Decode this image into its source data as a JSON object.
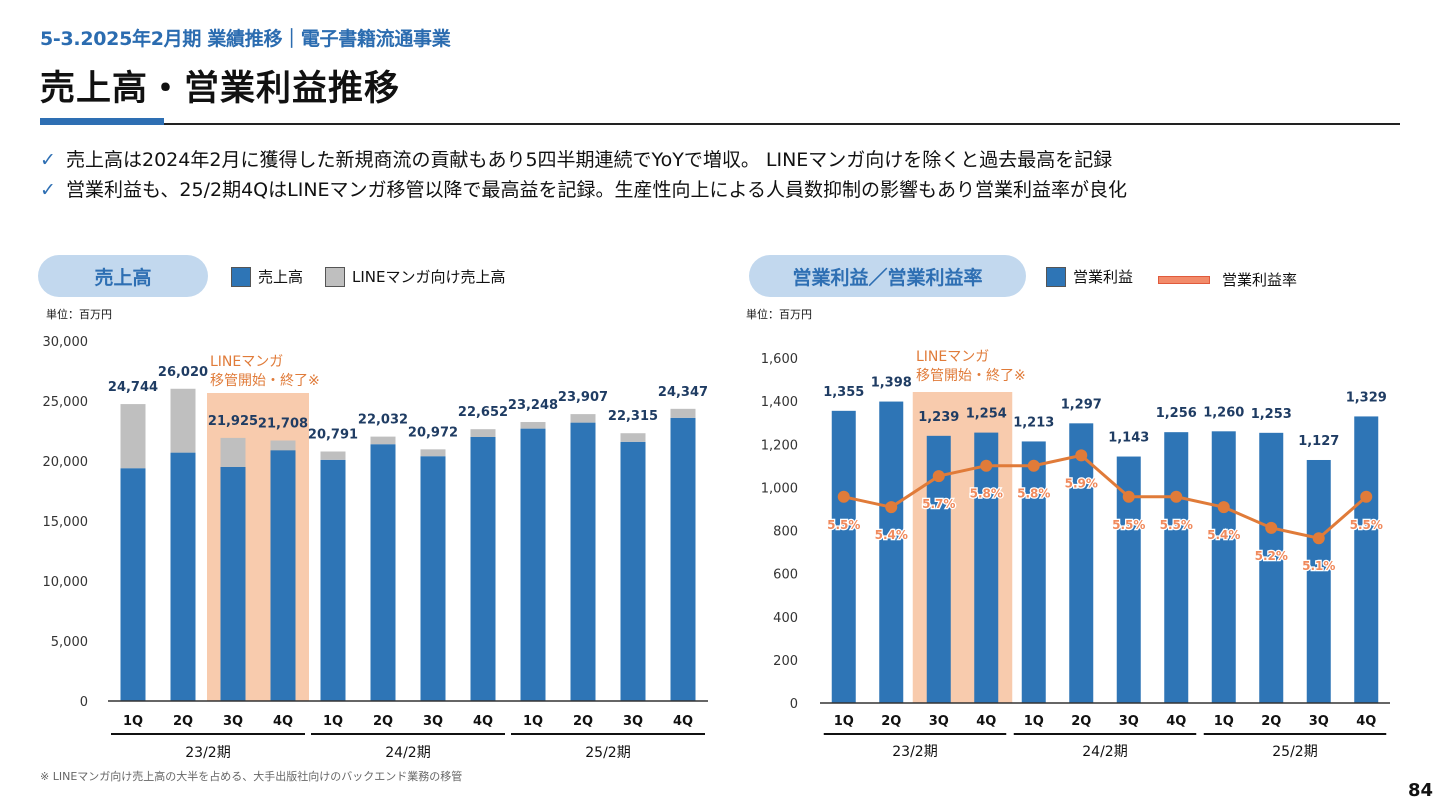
{
  "header": {
    "section_label": "5-3.2025年2月期 業績推移｜電子書籍流通事業",
    "title": "売上高・営業利益推移"
  },
  "bullets": [
    {
      "check": "✓",
      "text": "売上高は2024年2月に獲得した新規商流の貢献もあり5四半期連続でYoYで増収。 LINEマンガ向けを除くと過去最高を記録"
    },
    {
      "check": "✓",
      "text": "営業利益も、25/2期4QはLINEマンガ移管以降で最高益を記録。生産性向上による人員数抑制の影響もあり営業利益率が良化"
    }
  ],
  "colors": {
    "accent": "#2e6fb3",
    "bar_blue": "#2e75b6",
    "bar_gray": "#bfbfbf",
    "highlight": "#f8cbad",
    "annotation": "#e07b39",
    "line": "#e07b39",
    "pill": "#c2d8ee"
  },
  "left_chart": {
    "pill_label": "売上高",
    "legend": [
      "売上高",
      "LINEマンガ向け売上高"
    ],
    "unit": "単位：百万円"
  },
  "right_chart": {
    "pill_label": "営業利益／営業利益率",
    "legend": [
      "営業利益",
      "営業利益率"
    ],
    "unit": "単位：百万円"
  },
  "footnote": "※ LINEマンガ向け売上高の大半を占める、大手出版社向けのバックエンド業務の移管",
  "page_number": "84",
  "chart_data": [
    {
      "type": "bar",
      "stacked": true,
      "categories": [
        "1Q",
        "2Q",
        "3Q",
        "4Q",
        "1Q",
        "2Q",
        "3Q",
        "4Q",
        "1Q",
        "2Q",
        "3Q",
        "4Q"
      ],
      "groups": [
        {
          "label": "23/2期",
          "start": 0,
          "end": 3
        },
        {
          "label": "24/2期",
          "start": 4,
          "end": 7
        },
        {
          "label": "25/2期",
          "start": 8,
          "end": 11
        }
      ],
      "series": [
        {
          "name": "売上高",
          "values": [
            19400,
            20700,
            19500,
            20900,
            20100,
            21400,
            20400,
            22000,
            22700,
            23200,
            21600,
            23600
          ]
        },
        {
          "name": "LINEマンガ向け売上高",
          "values": [
            5344,
            5320,
            2425,
            808,
            691,
            632,
            572,
            652,
            548,
            707,
            715,
            747
          ]
        }
      ],
      "totals": [
        24744,
        26020,
        21925,
        21708,
        20791,
        22032,
        20972,
        22652,
        23248,
        23907,
        22315,
        24347
      ],
      "total_labels": [
        "24,744",
        "26,020",
        "21,925",
        "21,708",
        "20,791",
        "22,032",
        "20,972",
        "22,652",
        "23,248",
        "23,907",
        "22,315",
        "24,347"
      ],
      "ylim": [
        0,
        30000
      ],
      "yticks": [
        0,
        5000,
        10000,
        15000,
        20000,
        25000,
        30000
      ],
      "ytick_labels": [
        "0",
        "5,000",
        "10,000",
        "15,000",
        "20,000",
        "25,000",
        "30,000"
      ],
      "highlight": {
        "start": 2,
        "end": 3,
        "annotation": [
          "LINEマンガ",
          "移管開始・終了※"
        ]
      }
    },
    {
      "type": "bar",
      "categories": [
        "1Q",
        "2Q",
        "3Q",
        "4Q",
        "1Q",
        "2Q",
        "3Q",
        "4Q",
        "1Q",
        "2Q",
        "3Q",
        "4Q"
      ],
      "groups": [
        {
          "label": "23/2期",
          "start": 0,
          "end": 3
        },
        {
          "label": "24/2期",
          "start": 4,
          "end": 7
        },
        {
          "label": "25/2期",
          "start": 8,
          "end": 11
        }
      ],
      "series": [
        {
          "name": "営業利益",
          "values": [
            1355,
            1398,
            1239,
            1254,
            1213,
            1297,
            1143,
            1256,
            1260,
            1253,
            1127,
            1329
          ],
          "labels": [
            "1,355",
            "1,398",
            "1,239",
            "1,254",
            "1,213",
            "1,297",
            "1,143",
            "1,256",
            "1,260",
            "1,253",
            "1,127",
            "1,329"
          ]
        },
        {
          "name": "営業利益率",
          "values": [
            5.5,
            5.4,
            5.7,
            5.8,
            5.8,
            5.9,
            5.5,
            5.5,
            5.4,
            5.2,
            5.1,
            5.5
          ],
          "labels": [
            "5.5%",
            "5.4%",
            "5.7%",
            "5.8%",
            "5.8%",
            "5.9%",
            "5.5%",
            "5.5%",
            "5.4%",
            "5.2%",
            "5.1%",
            "5.5%"
          ]
        }
      ],
      "ylim": [
        0,
        1600
      ],
      "yticks": [
        0,
        200,
        400,
        600,
        800,
        1000,
        1200,
        1400,
        1600
      ],
      "ytick_labels": [
        "0",
        "200",
        "400",
        "600",
        "800",
        "1,000",
        "1,200",
        "1,400",
        "1,600"
      ],
      "highlight": {
        "start": 2,
        "end": 3,
        "annotation": [
          "LINEマンガ",
          "移管開始・終了※"
        ]
      }
    }
  ]
}
